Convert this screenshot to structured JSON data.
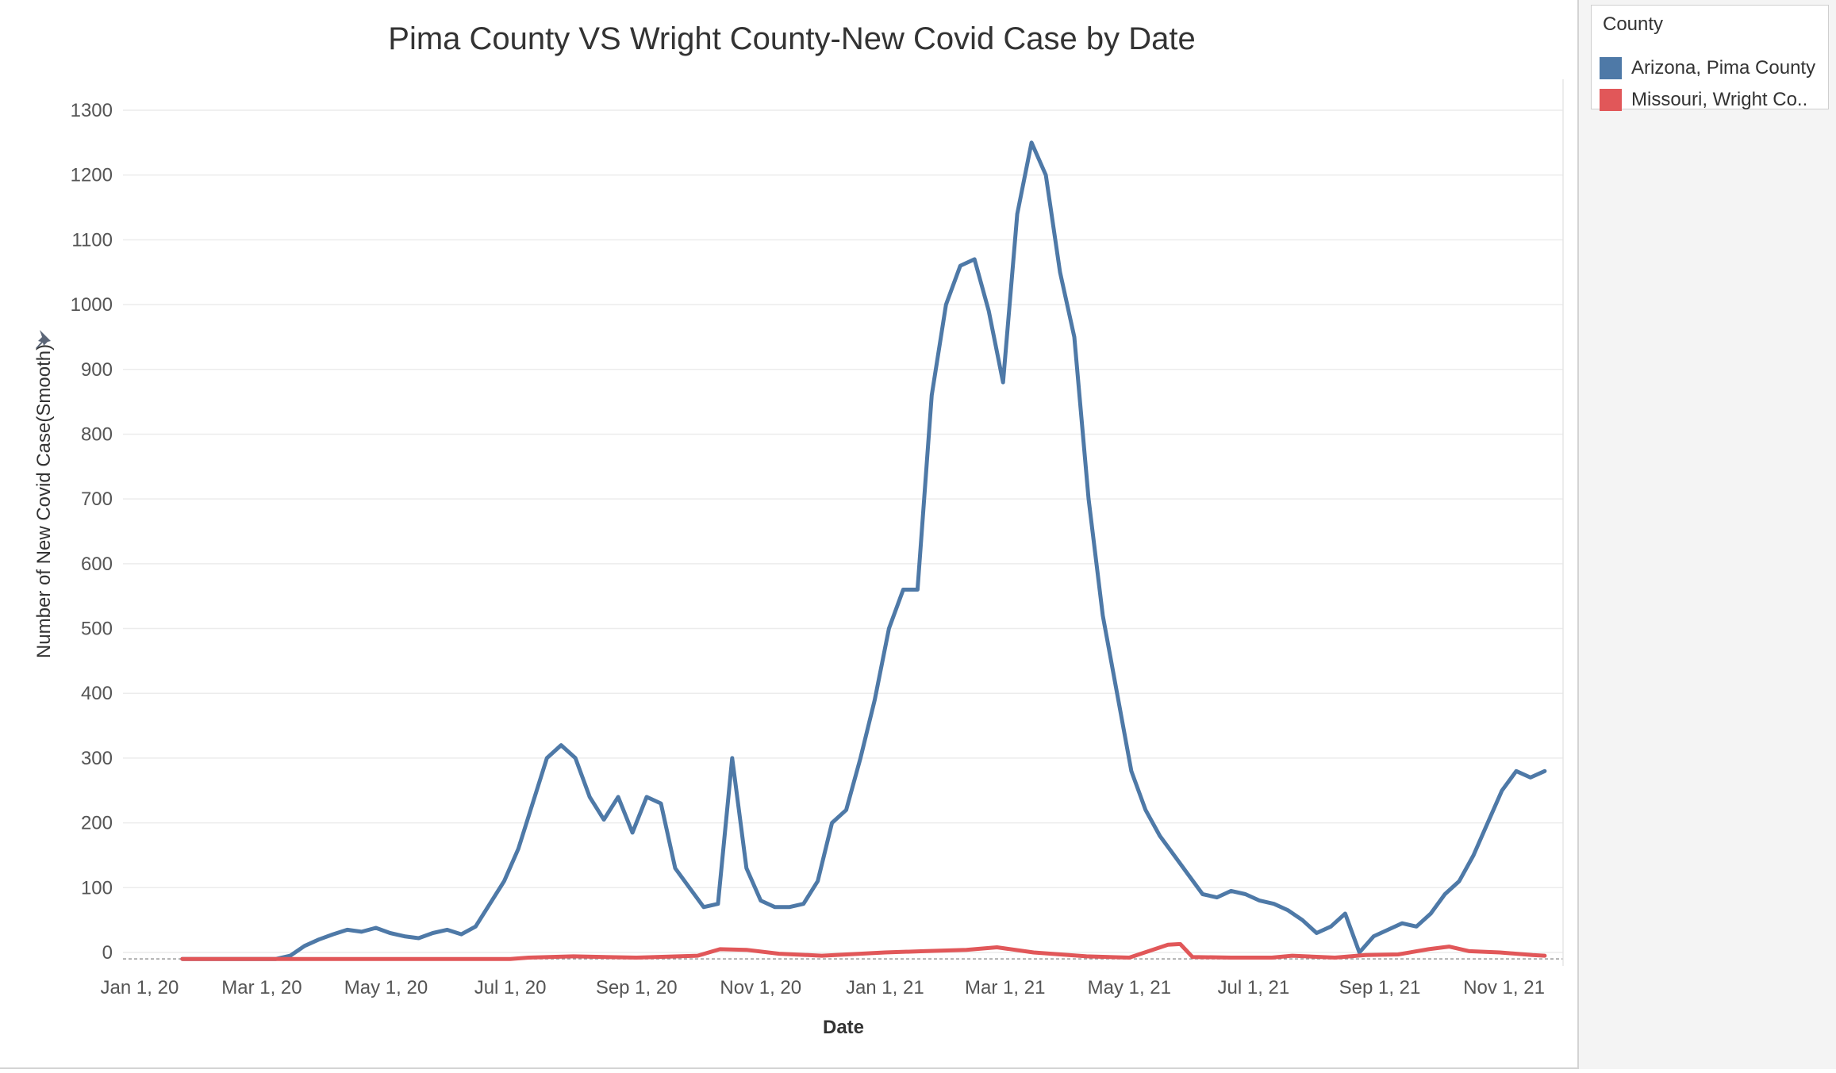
{
  "chart_data": {
    "type": "line",
    "title": "Pima County VS Wright County-New Covid Case by Date",
    "xlabel": "Date",
    "ylabel": "Number of New Covid Case(Smooth)",
    "ylim": [
      -10,
      1300
    ],
    "y_ticks": [
      0,
      100,
      200,
      300,
      400,
      500,
      600,
      700,
      800,
      900,
      1000,
      1100,
      1200,
      1300
    ],
    "x_ticks": [
      {
        "date": "2020-01-01",
        "label": "Jan 1, 20"
      },
      {
        "date": "2020-03-01",
        "label": "Mar 1, 20"
      },
      {
        "date": "2020-05-01",
        "label": "May 1, 20"
      },
      {
        "date": "2020-07-01",
        "label": "Jul 1, 20"
      },
      {
        "date": "2020-09-01",
        "label": "Sep 1, 20"
      },
      {
        "date": "2020-11-01",
        "label": "Nov 1, 20"
      },
      {
        "date": "2021-01-01",
        "label": "Jan 1, 21"
      },
      {
        "date": "2021-03-01",
        "label": "Mar 1, 21"
      },
      {
        "date": "2021-05-01",
        "label": "May 1, 21"
      },
      {
        "date": "2021-07-01",
        "label": "Jul 1, 21"
      },
      {
        "date": "2021-09-01",
        "label": "Sep 1, 21"
      },
      {
        "date": "2021-11-01",
        "label": "Nov 1, 21"
      }
    ],
    "x_range": [
      "2019-12-18",
      "2021-11-30"
    ],
    "grid": true,
    "legend_placement": "right",
    "legend_title": "County",
    "series": [
      {
        "name": "Arizona, Pima County",
        "color": "#4e79a7",
        "points": [
          [
            "2020-01-22",
            -10
          ],
          [
            "2020-02-15",
            -10
          ],
          [
            "2020-03-08",
            -10
          ],
          [
            "2020-03-15",
            -5
          ],
          [
            "2020-03-22",
            10
          ],
          [
            "2020-03-29",
            20
          ],
          [
            "2020-04-05",
            28
          ],
          [
            "2020-04-12",
            35
          ],
          [
            "2020-04-19",
            32
          ],
          [
            "2020-04-26",
            38
          ],
          [
            "2020-05-03",
            30
          ],
          [
            "2020-05-10",
            25
          ],
          [
            "2020-05-17",
            22
          ],
          [
            "2020-05-24",
            30
          ],
          [
            "2020-05-31",
            35
          ],
          [
            "2020-06-07",
            28
          ],
          [
            "2020-06-14",
            40
          ],
          [
            "2020-06-21",
            75
          ],
          [
            "2020-06-28",
            110
          ],
          [
            "2020-07-05",
            160
          ],
          [
            "2020-07-12",
            230
          ],
          [
            "2020-07-19",
            300
          ],
          [
            "2020-07-26",
            320
          ],
          [
            "2020-08-02",
            300
          ],
          [
            "2020-08-09",
            240
          ],
          [
            "2020-08-16",
            205
          ],
          [
            "2020-08-23",
            240
          ],
          [
            "2020-08-30",
            185
          ],
          [
            "2020-09-06",
            240
          ],
          [
            "2020-09-13",
            230
          ],
          [
            "2020-09-20",
            130
          ],
          [
            "2020-09-27",
            100
          ],
          [
            "2020-10-04",
            70
          ],
          [
            "2020-10-11",
            75
          ],
          [
            "2020-10-18",
            300
          ],
          [
            "2020-10-25",
            130
          ],
          [
            "2020-11-01",
            80
          ],
          [
            "2020-11-08",
            70
          ],
          [
            "2020-11-15",
            70
          ],
          [
            "2020-11-22",
            75
          ],
          [
            "2020-11-29",
            110
          ],
          [
            "2020-12-06",
            200
          ],
          [
            "2020-12-13",
            220
          ],
          [
            "2020-12-20",
            300
          ],
          [
            "2020-12-27",
            390
          ],
          [
            "2021-01-03",
            500
          ],
          [
            "2021-01-10",
            560
          ],
          [
            "2021-01-17",
            560
          ],
          [
            "2021-01-24",
            860
          ],
          [
            "2021-01-31",
            1000
          ],
          [
            "2021-02-07",
            1060
          ],
          [
            "2021-02-14",
            1070
          ],
          [
            "2021-02-21",
            990
          ],
          [
            "2021-02-28",
            880
          ],
          [
            "2021-03-07",
            1140
          ],
          [
            "2021-03-14",
            1250
          ],
          [
            "2021-03-21",
            1200
          ],
          [
            "2021-03-28",
            1050
          ],
          [
            "2021-04-04",
            950
          ],
          [
            "2021-04-11",
            700
          ],
          [
            "2021-04-18",
            520
          ],
          [
            "2021-04-25",
            400
          ],
          [
            "2021-05-02",
            280
          ],
          [
            "2021-05-09",
            220
          ],
          [
            "2021-05-16",
            180
          ],
          [
            "2021-05-23",
            150
          ],
          [
            "2021-05-30",
            120
          ],
          [
            "2021-06-06",
            90
          ],
          [
            "2021-06-13",
            85
          ],
          [
            "2021-06-20",
            95
          ],
          [
            "2021-06-27",
            90
          ],
          [
            "2021-07-04",
            80
          ],
          [
            "2021-07-11",
            75
          ],
          [
            "2021-07-18",
            65
          ],
          [
            "2021-07-25",
            50
          ],
          [
            "2021-08-01",
            30
          ],
          [
            "2021-08-08",
            40
          ],
          [
            "2021-08-15",
            60
          ],
          [
            "2021-08-22",
            0
          ],
          [
            "2021-08-29",
            25
          ],
          [
            "2021-09-05",
            35
          ],
          [
            "2021-09-12",
            45
          ],
          [
            "2021-09-19",
            40
          ],
          [
            "2021-09-26",
            60
          ],
          [
            "2021-10-03",
            90
          ],
          [
            "2021-10-10",
            110
          ],
          [
            "2021-10-17",
            150
          ],
          [
            "2021-10-24",
            200
          ],
          [
            "2021-10-31",
            250
          ],
          [
            "2021-11-07",
            280
          ],
          [
            "2021-11-14",
            270
          ],
          [
            "2021-11-21",
            280
          ]
        ]
      },
      {
        "name": "Missouri, Wright Co..",
        "color": "#e15759",
        "points": [
          [
            "2020-01-22",
            -10
          ],
          [
            "2020-03-20",
            -10
          ],
          [
            "2020-05-01",
            -10
          ],
          [
            "2020-07-01",
            -10
          ],
          [
            "2020-07-10",
            -8
          ],
          [
            "2020-08-01",
            -6
          ],
          [
            "2020-09-01",
            -8
          ],
          [
            "2020-10-01",
            -5
          ],
          [
            "2020-10-12",
            5
          ],
          [
            "2020-10-25",
            4
          ],
          [
            "2020-11-10",
            -2
          ],
          [
            "2020-12-01",
            -5
          ],
          [
            "2021-01-01",
            0
          ],
          [
            "2021-01-20",
            2
          ],
          [
            "2021-02-10",
            4
          ],
          [
            "2021-02-25",
            8
          ],
          [
            "2021-03-15",
            0
          ],
          [
            "2021-04-10",
            -6
          ],
          [
            "2021-05-01",
            -8
          ],
          [
            "2021-05-20",
            12
          ],
          [
            "2021-05-26",
            13
          ],
          [
            "2021-06-01",
            -7
          ],
          [
            "2021-06-20",
            -8
          ],
          [
            "2021-07-10",
            -8
          ],
          [
            "2021-07-20",
            -5
          ],
          [
            "2021-08-10",
            -8
          ],
          [
            "2021-08-25",
            -4
          ],
          [
            "2021-09-10",
            -3
          ],
          [
            "2021-09-25",
            5
          ],
          [
            "2021-10-05",
            9
          ],
          [
            "2021-10-15",
            2
          ],
          [
            "2021-10-30",
            0
          ],
          [
            "2021-11-15",
            -4
          ],
          [
            "2021-11-21",
            -5
          ]
        ]
      }
    ]
  }
}
